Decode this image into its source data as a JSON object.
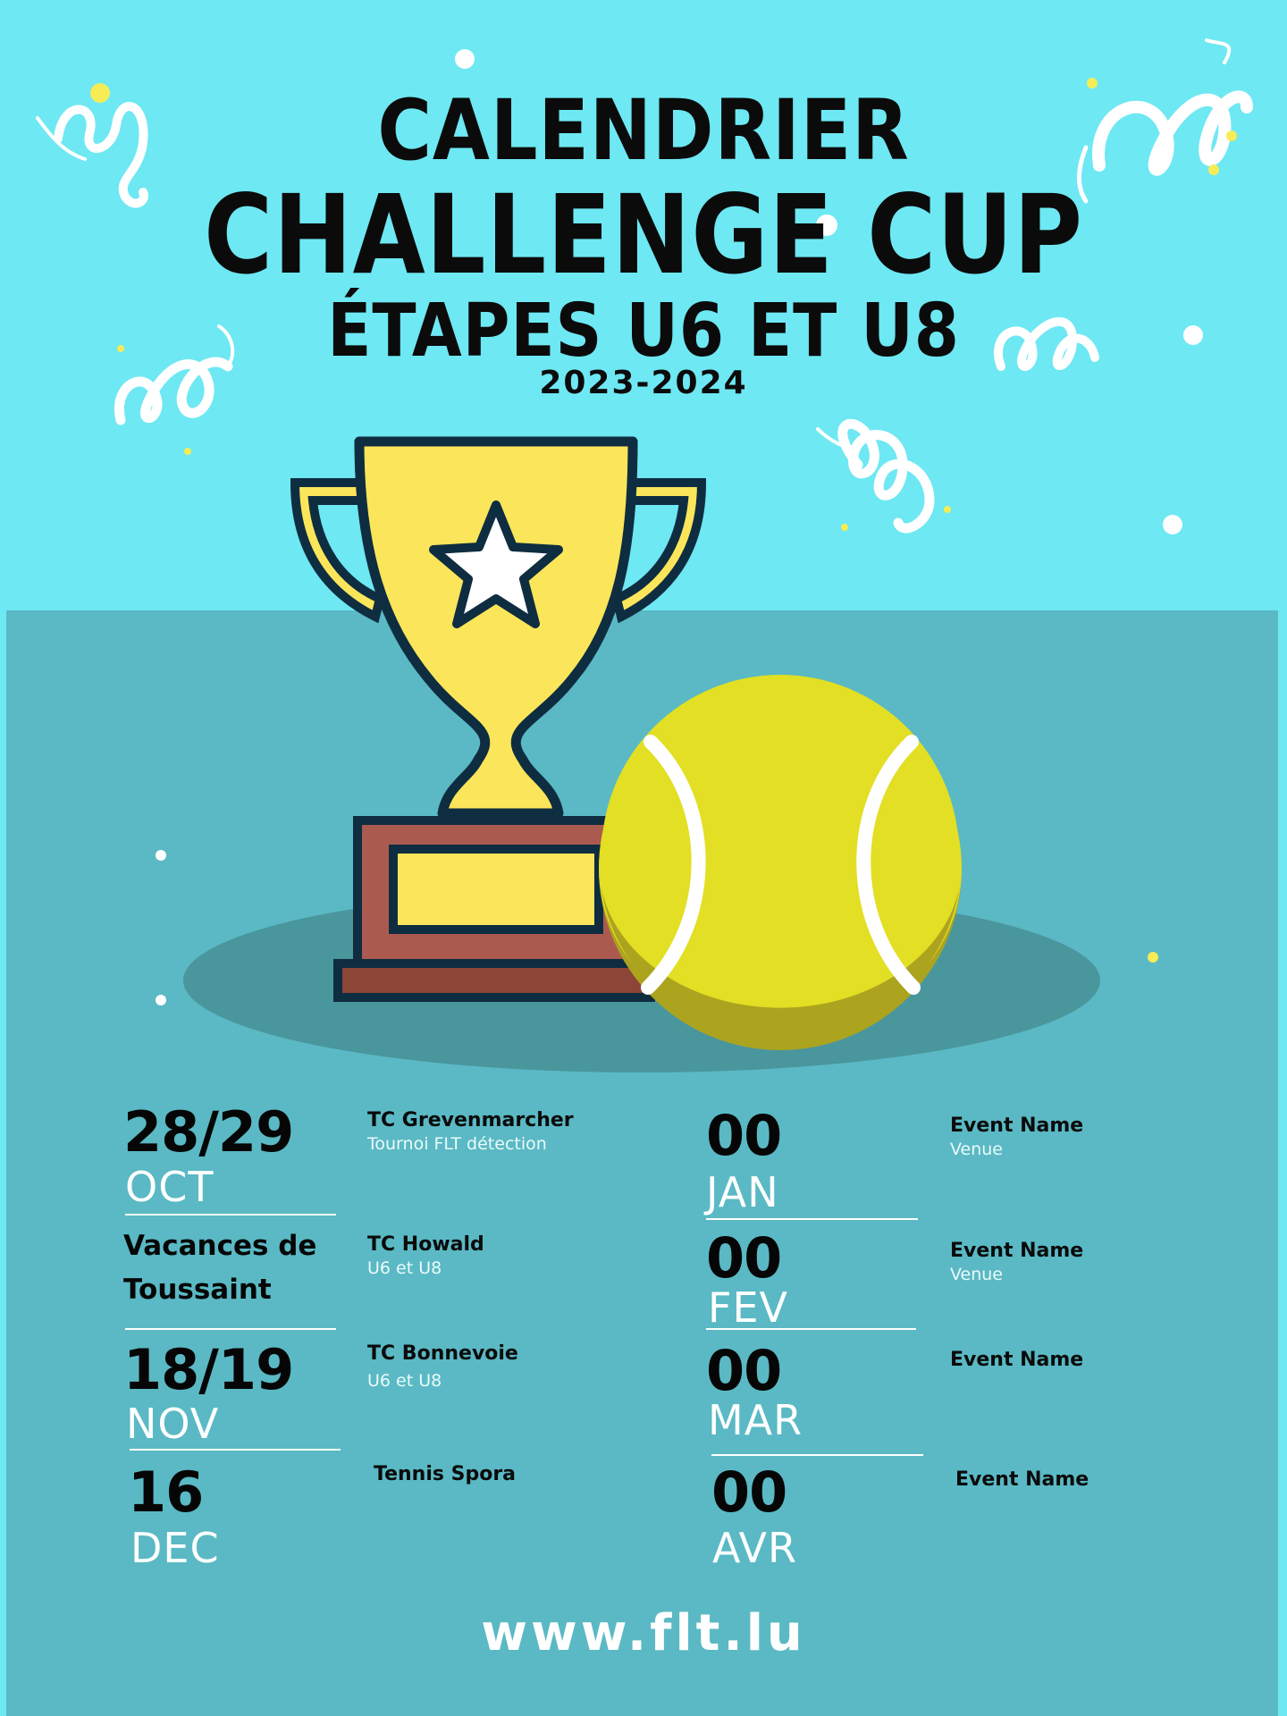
{
  "header": {
    "line1": "CALENDRIER",
    "line2": "CHALLENGE CUP",
    "line3": "ÉTAPES U6 ET U8",
    "season": "2023-2024"
  },
  "colors": {
    "sky": "#6ee8f3",
    "panel": "#5ab9c4",
    "trophy": "#fbe55a",
    "trophy_outline": "#0f2d40",
    "base": "#ab5a50",
    "ball": "#e2df24",
    "ball_shadow": "#aca41f",
    "ground_shadow": "#4a969d"
  },
  "schedule_left": [
    {
      "date": "28/29",
      "month": "OCT",
      "club": "TC Grevenmarcher",
      "detail": "Tournoi FLT détection"
    },
    {
      "note_line1": "Vacances de",
      "note_line2": "Toussaint",
      "club": "TC Howald",
      "detail": "U6 et U8"
    },
    {
      "date": "18/19",
      "month": "NOV",
      "club": "TC Bonnevoie",
      "detail": "U6 et U8"
    },
    {
      "date": "16",
      "month": "DEC",
      "club": "Tennis Spora",
      "detail": ""
    }
  ],
  "schedule_right": [
    {
      "date": "00",
      "month": "JAN",
      "event": "Event Name",
      "venue": "Venue"
    },
    {
      "date": "00",
      "month": "FEV",
      "event": "Event Name",
      "venue": "Venue"
    },
    {
      "date": "00",
      "month": "MAR",
      "event": "Event Name",
      "venue": ""
    },
    {
      "date": "00",
      "month": "AVR",
      "event": "Event Name",
      "venue": ""
    }
  ],
  "footer": {
    "url": "www.flt.lu"
  }
}
